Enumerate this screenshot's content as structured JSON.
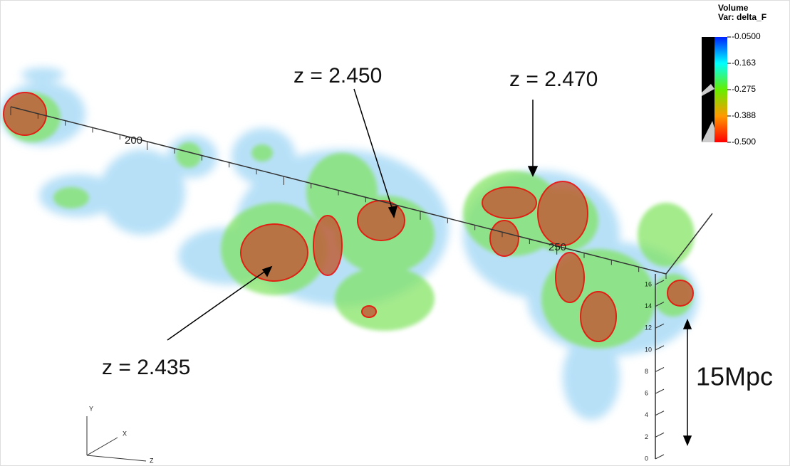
{
  "legend": {
    "title": "Volume",
    "variable": "Var: delta_F",
    "labels": [
      "-0.0500",
      "-0.163",
      "-0.275",
      "-0.388",
      "-0.500"
    ]
  },
  "annotations": [
    "z = 2.450",
    "z = 2.470",
    "z = 2.435"
  ],
  "main_axis": {
    "labels": [
      "200",
      "250"
    ]
  },
  "vertical_axis": {
    "labels": [
      "0",
      "2",
      "4",
      "6",
      "8",
      "10",
      "12",
      "14",
      "16"
    ]
  },
  "orientation": {
    "labels": [
      "Y",
      "X",
      "Z"
    ]
  },
  "scale_label": "15Mpc"
}
